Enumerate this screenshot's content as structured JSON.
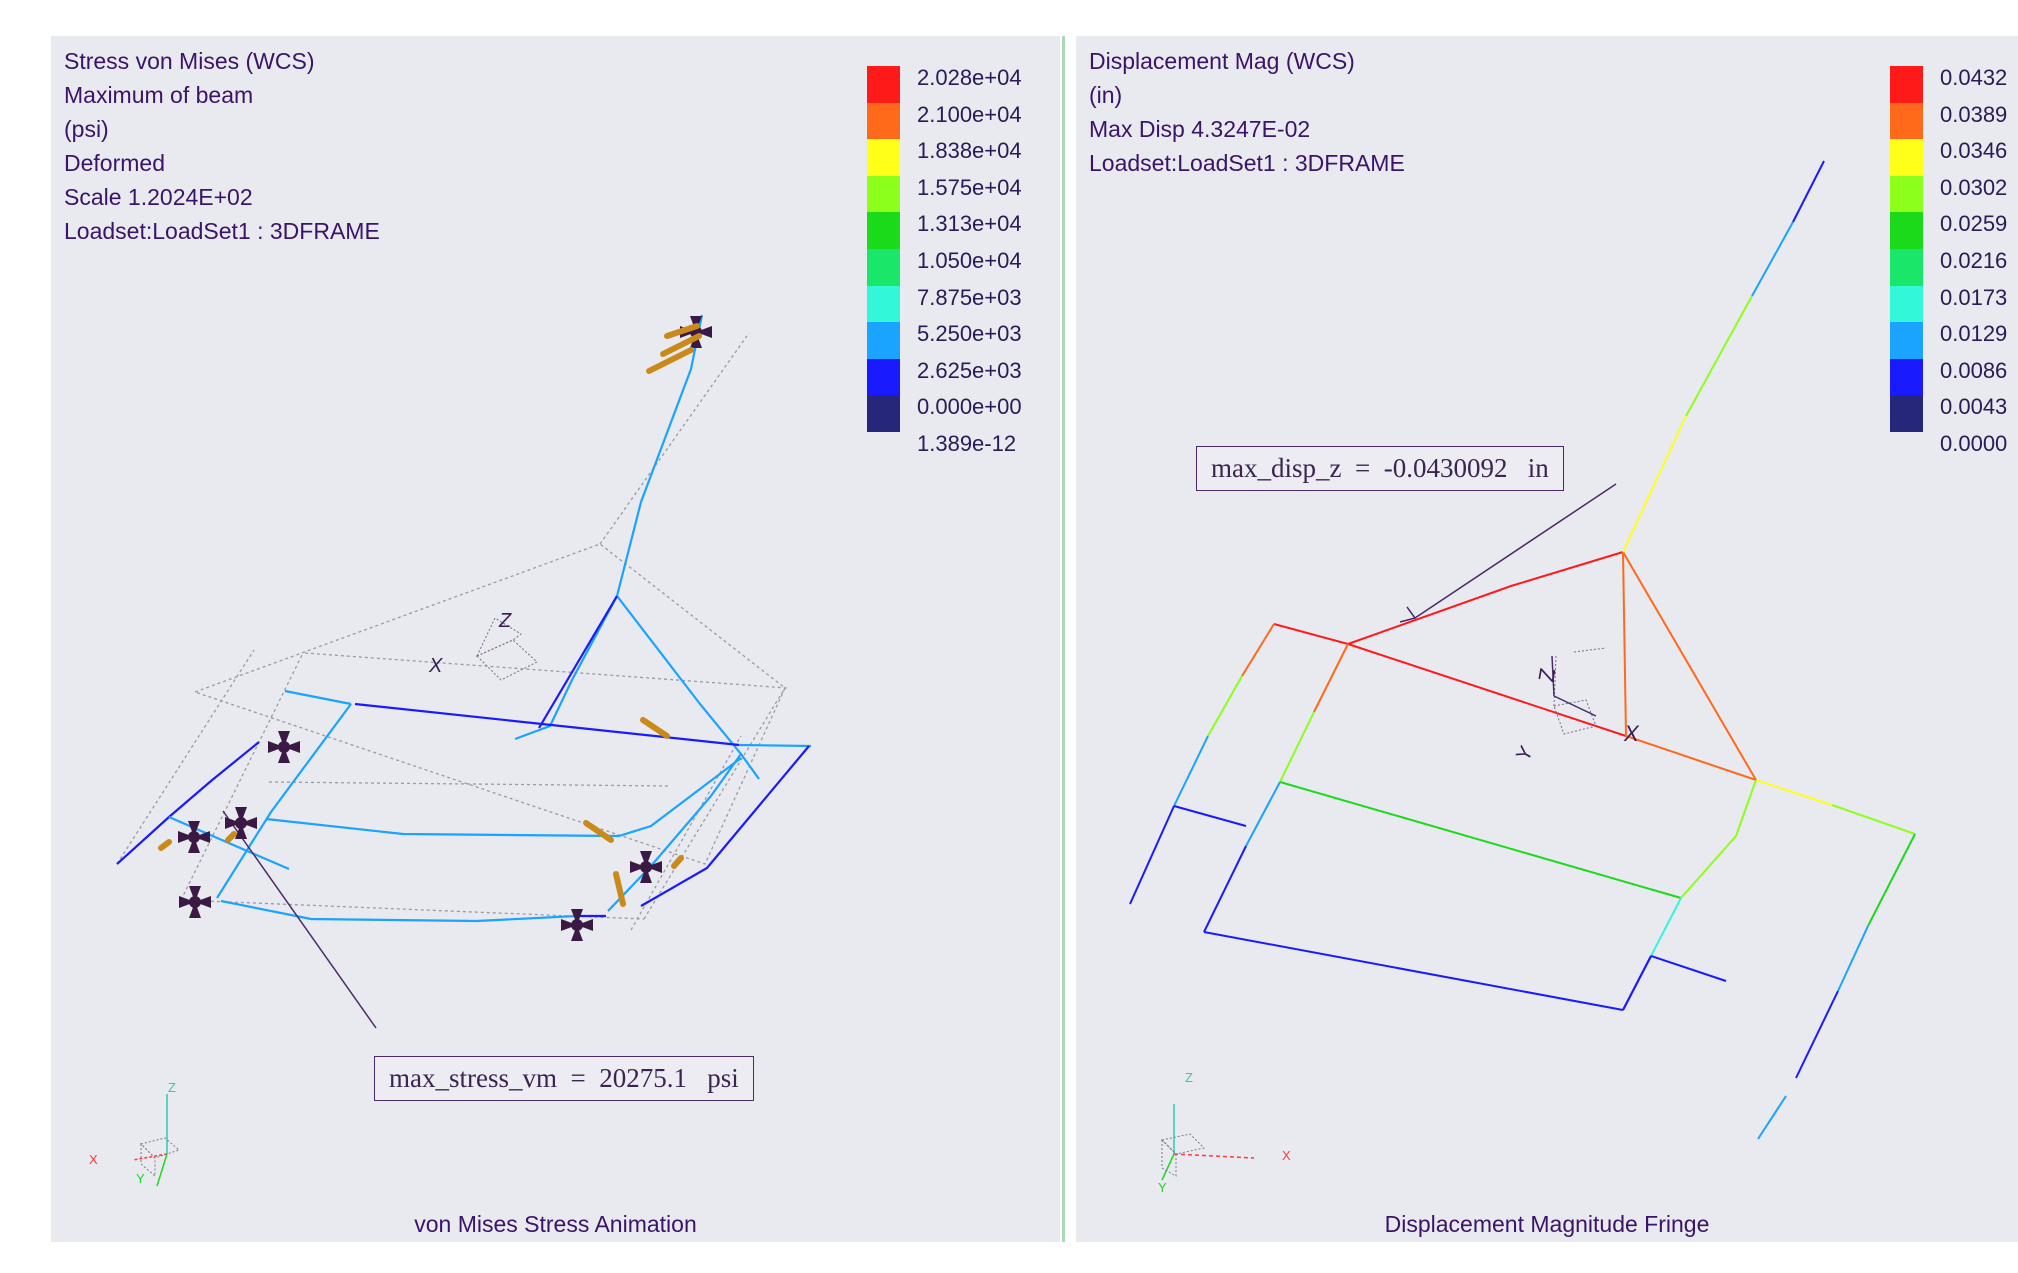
{
  "left_panel": {
    "info_lines": [
      "Stress von Mises (WCS)",
      "Maximum of beam",
      "(psi)",
      "Deformed",
      "Scale  1.2024E+02",
      "Loadset:LoadSet1 :  3DFRAME"
    ],
    "legend": {
      "labels": [
        "2.028e+04",
        "2.100e+04",
        "1.838e+04",
        "1.575e+04",
        "1.313e+04",
        "1.050e+04",
        "7.875e+03",
        "5.250e+03",
        "2.625e+03",
        "0.000e+00",
        "1.389e-12"
      ],
      "colors": [
        "#ff1a1a",
        "#ff6a1a",
        "#ffff1a",
        "#8cff1a",
        "#1ada1a",
        "#1ae66a",
        "#33f7d9",
        "#1aa3ff",
        "#1a1aff",
        "#26267a"
      ]
    },
    "annotation": "max_stress_vm  =  20275.1   psi",
    "triad_labels": {
      "x": "X",
      "y": "Y",
      "z": "Z"
    },
    "caption": "von Mises Stress Animation"
  },
  "right_panel": {
    "info_lines": [
      "Displacement Mag (WCS)",
      "(in)",
      "Max Disp  4.3247E-02",
      "Loadset:LoadSet1 :  3DFRAME"
    ],
    "legend": {
      "labels": [
        "0.0432",
        "0.0389",
        "0.0346",
        "0.0302",
        "0.0259",
        "0.0216",
        "0.0173",
        "0.0129",
        "0.0086",
        "0.0043",
        "0.0000"
      ],
      "colors": [
        "#ff1a1a",
        "#ff6a1a",
        "#ffff1a",
        "#8cff1a",
        "#1ada1a",
        "#1ae66a",
        "#33f7d9",
        "#1aa3ff",
        "#1a1aff",
        "#26267a"
      ]
    },
    "annotation": "max_disp_z  =  -0.0430092   in",
    "triad_labels": {
      "x": "X",
      "y": "Y",
      "z": "Z"
    },
    "caption": "Displacement Magnitude Fringe"
  }
}
